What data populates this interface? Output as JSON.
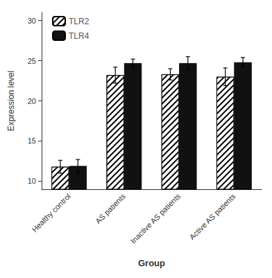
{
  "chart_data": {
    "type": "bar",
    "xlabel": "Group",
    "ylabel": "Expression level",
    "categories": [
      "Healthy control",
      "AS patients",
      "Inactive AS patients",
      "Active AS patients"
    ],
    "series": [
      {
        "name": "TLR2",
        "color": "white",
        "values": [
          11.8,
          23.2,
          23.3,
          23.0
        ],
        "errors": [
          0.8,
          1.0,
          0.7,
          1.1
        ]
      },
      {
        "name": "TLR4",
        "color": "#111111",
        "values": [
          11.9,
          24.7,
          24.7,
          24.8
        ],
        "errors": [
          0.8,
          0.5,
          0.8,
          0.6
        ]
      }
    ],
    "ylim": [
      9,
      31
    ],
    "yticks": [
      10,
      15,
      20,
      25,
      30
    ],
    "grid": false,
    "legend": "upper left"
  }
}
